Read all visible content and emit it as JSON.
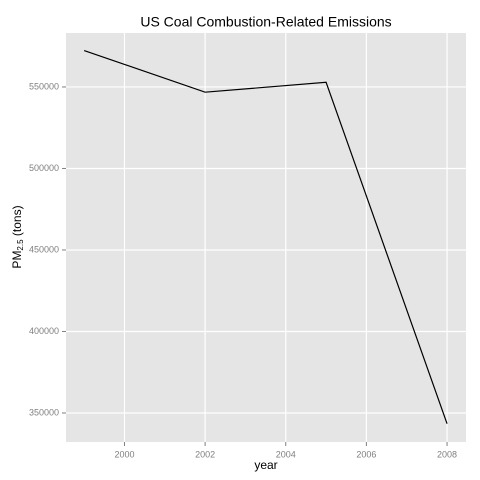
{
  "chart_data": {
    "type": "line",
    "title": "US Coal Combustion-Related Emissions",
    "x_label": "year",
    "y_label": [
      "PM",
      "2.5",
      " (tons)"
    ],
    "x": [
      1999,
      2002,
      2005,
      2008
    ],
    "series": [
      {
        "color": "#000000",
        "values": [
          572346,
          546789,
          552881,
          343432
        ]
      }
    ],
    "xlim": [
      1998.55,
      2008.47
    ],
    "xticks": [
      2000,
      2002,
      2004,
      2006,
      2008
    ],
    "ylim": [
      332200,
      583100
    ],
    "yticks": [
      350000,
      400000,
      450000,
      500000,
      550000
    ],
    "grid": true
  }
}
